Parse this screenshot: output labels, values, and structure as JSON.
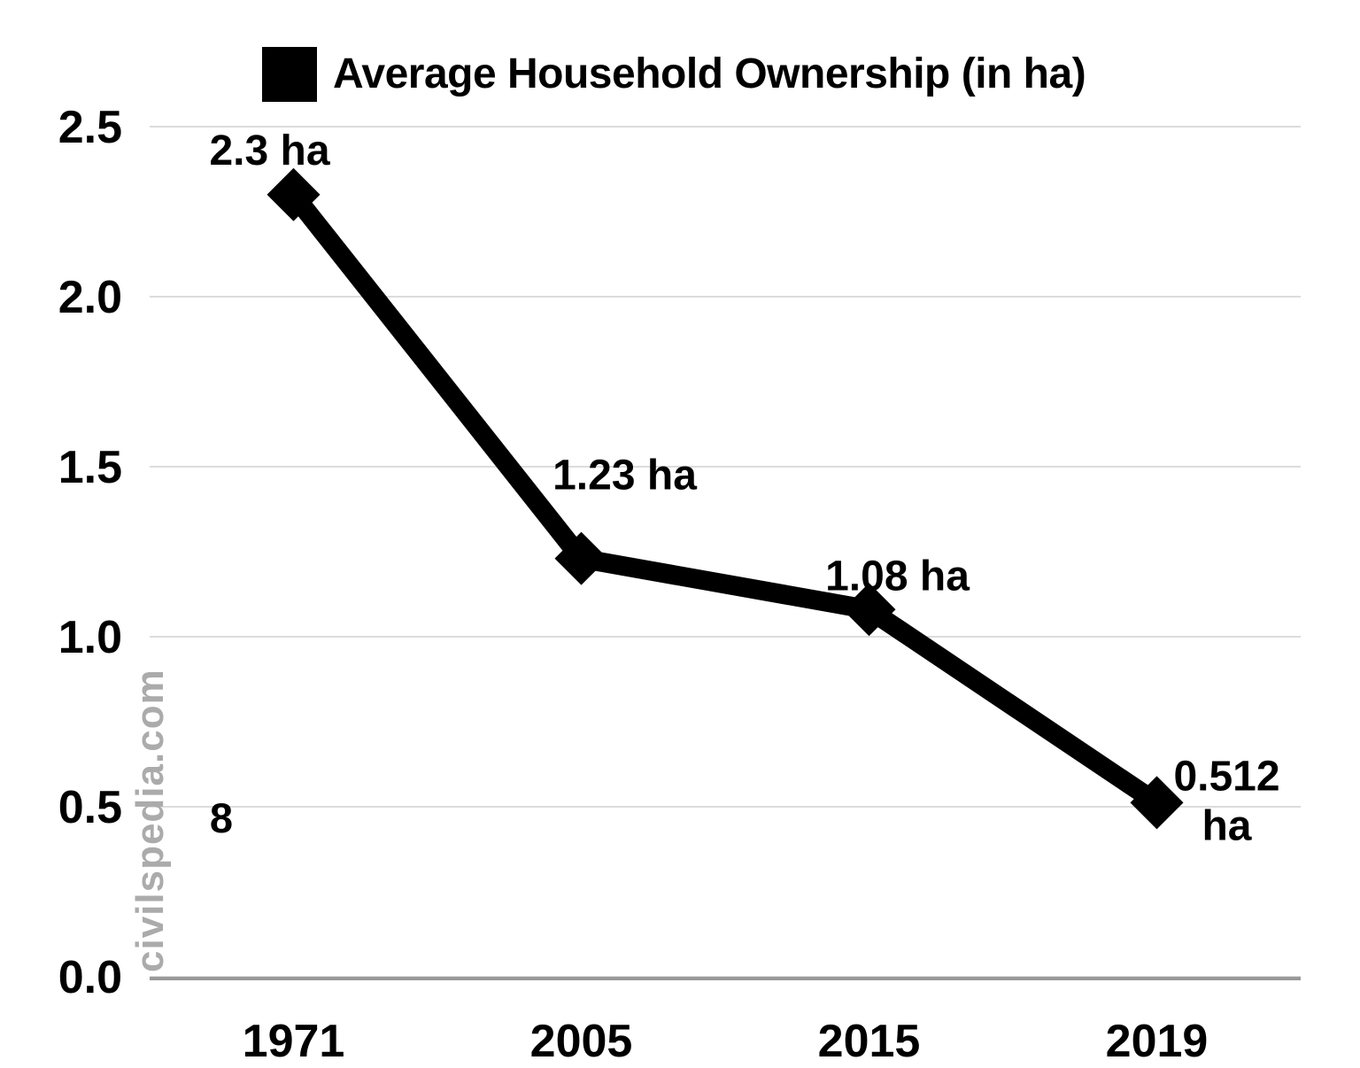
{
  "page": {
    "background_color": "#ffffff"
  },
  "legend": {
    "label": "Average Household Ownership (in ha)",
    "swatch_color": "#000000"
  },
  "watermark": {
    "text": "civilspedia.com",
    "color": "#ababab"
  },
  "chart_data": {
    "type": "line",
    "title": "Average Household Ownership (in ha)",
    "categories": [
      "1971",
      "2005",
      "2015",
      "2019"
    ],
    "series": [
      {
        "name": "Average Household Ownership (in ha)",
        "values": [
          2.3,
          1.23,
          1.08,
          0.512
        ]
      }
    ],
    "point_labels": [
      [
        "2.3 ha"
      ],
      [
        "1.23 ha"
      ],
      [
        "1.08 ha"
      ],
      [
        "0.512",
        "ha"
      ]
    ],
    "ytick_labels": [
      "0.0",
      "0.5",
      "1.0",
      "1.5",
      "2.0",
      "2.5"
    ],
    "yticks": [
      0.0,
      0.5,
      1.0,
      1.5,
      2.0,
      2.5
    ],
    "ylim": [
      0,
      2.5
    ],
    "grid": true,
    "legend_position": "top",
    "marker": "diamond",
    "line_color": "#000000",
    "grid_color": "#dcdcdc",
    "axis_color": "#999999",
    "label_color": "#000000",
    "annotations": [
      {
        "text": "8"
      }
    ]
  }
}
